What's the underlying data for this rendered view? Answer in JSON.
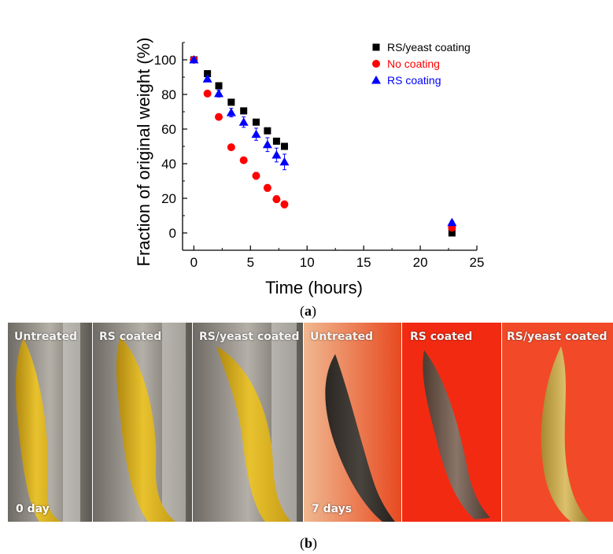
{
  "chart_data": {
    "type": "scatter",
    "xlabel": "Time (hours)",
    "ylabel": "Fraction of original weight (%)",
    "xlim": [
      -1,
      25
    ],
    "ylim": [
      -10,
      110
    ],
    "xticks": [
      0,
      5,
      10,
      15,
      20,
      25
    ],
    "yticks": [
      0,
      20,
      40,
      60,
      80,
      100
    ],
    "grid": false,
    "legend_position": "top-right",
    "series": [
      {
        "name": "RS/yeast coating",
        "marker": "square",
        "color": "#000000",
        "x": [
          0,
          1.2,
          2.2,
          3.3,
          4.4,
          5.5,
          6.5,
          7.3,
          8.0,
          22.8
        ],
        "y": [
          100,
          92,
          85,
          75.5,
          70.5,
          64,
          59,
          53,
          50,
          0
        ],
        "err": [
          1,
          1.5,
          1.5,
          1.5,
          1.5,
          1.5,
          1.5,
          1.5,
          1.5,
          1
        ]
      },
      {
        "name": "No coating",
        "marker": "circle",
        "color": "#ff0000",
        "x": [
          0,
          1.2,
          2.2,
          3.3,
          4.4,
          5.5,
          6.5,
          7.3,
          8.0,
          22.8
        ],
        "y": [
          100,
          80.5,
          67,
          49.5,
          42,
          33,
          26,
          19.5,
          16.5,
          3
        ],
        "err": [
          1,
          1.5,
          1.5,
          1.5,
          1.5,
          2,
          2,
          2,
          2,
          1
        ]
      },
      {
        "name": "RS coating",
        "marker": "triangle",
        "color": "#0000ff",
        "x": [
          0,
          1.2,
          2.2,
          3.3,
          4.4,
          5.5,
          6.5,
          7.3,
          8.0,
          22.8
        ],
        "y": [
          100,
          89,
          80.5,
          69.5,
          64,
          57,
          51,
          45,
          41,
          6
        ],
        "err": [
          1,
          1.5,
          2,
          2.5,
          3,
          3.5,
          4,
          4,
          4.5,
          1
        ]
      }
    ]
  },
  "captions": {
    "a": "a",
    "b": "b"
  },
  "photos": {
    "panels": [
      {
        "label": "Untreated"
      },
      {
        "label": "RS coated"
      },
      {
        "label": "RS/yeast coated"
      },
      {
        "label": "Untreated"
      },
      {
        "label": "RS coated"
      },
      {
        "label": "RS/yeast coated"
      }
    ],
    "day0_label": "0 day",
    "day7_label": "7 days"
  },
  "colors": {
    "banana_fresh": "#e0b82a",
    "banana_rotten": "#3b3530",
    "background_red": "#ff2a10"
  }
}
